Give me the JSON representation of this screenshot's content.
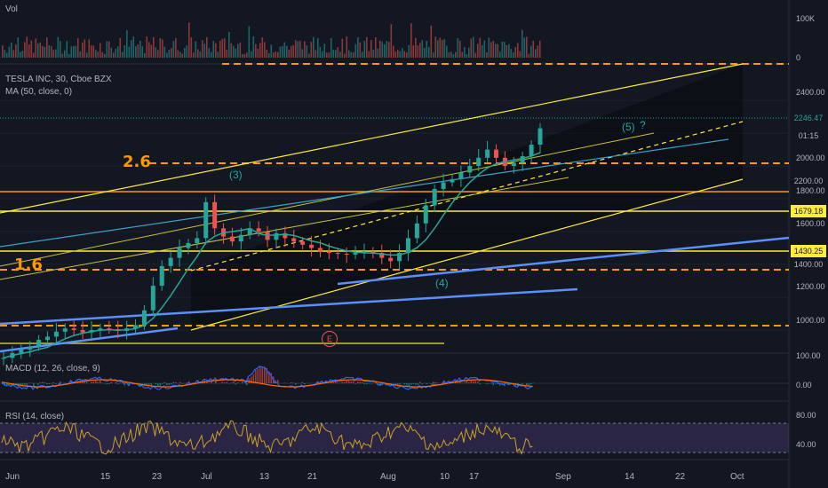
{
  "chart_data": [
    {
      "type": "bar",
      "title": "Vol",
      "y_ticks": [
        "100K",
        "0"
      ]
    },
    {
      "type": "candlestick",
      "title": "TESLA INC, 30, Cboe BZX",
      "indicator": "MA (50, close, 0)",
      "x_ticks": [
        "Jun",
        "15",
        "23",
        "Jul",
        "13",
        "21",
        "Aug",
        "10",
        "17",
        "Sep",
        "14",
        "22",
        "Oct"
      ],
      "y_ticks": [
        "2400.00",
        "2200.00",
        "2000.00",
        "1800.00",
        "1600.00",
        "1400.00",
        "1200.00",
        "1000.00"
      ],
      "ylim": [
        870,
        2590
      ],
      "close_series": [
        830,
        860,
        880,
        900,
        940,
        960,
        990,
        1010,
        1000,
        985,
        1000,
        1010,
        1005,
        995,
        1010,
        1030,
        1120,
        1270,
        1390,
        1440,
        1500,
        1530,
        1560,
        1780,
        1620,
        1570,
        1540,
        1580,
        1620,
        1600,
        1550,
        1590,
        1560,
        1540,
        1520,
        1500,
        1480,
        1470,
        1465,
        1460,
        1470,
        1480,
        1470,
        1440,
        1420,
        1470,
        1560,
        1650,
        1760,
        1860,
        1900,
        1920,
        1960,
        2000,
        2050,
        2100,
        2050,
        2000,
        2020,
        2060,
        2130,
        2230
      ],
      "last_price": "2246.47",
      "countdown": "01:15",
      "horizontal_levels": [
        "1679.18",
        "1430.25"
      ],
      "fib_labels": [
        "2.6",
        "1.6"
      ],
      "wave_labels": [
        "(3)",
        "(4)",
        "(5)",
        "?"
      ],
      "event_label": "E",
      "series": [
        {
          "name": "MA (50, close, 0)",
          "color": "#26a69a"
        }
      ]
    },
    {
      "type": "line",
      "title": "MACD (12, 26, close, 9)",
      "y_ticks": [
        "100.00",
        "0.00"
      ],
      "colors": {
        "macd": "#2962ff",
        "signal": "#ff6d00"
      }
    },
    {
      "type": "line",
      "title": "RSI (14, close)",
      "y_ticks": [
        "80.00",
        "40.00"
      ],
      "bands": [
        70,
        30
      ],
      "color": "#c9a227"
    }
  ],
  "colors": {
    "background": "#131722",
    "orange": "#ff9800",
    "yellow": "#ffeb3b",
    "blue_trend": "#5b8ff9",
    "teal": "#26a69a",
    "up": "#26a69a",
    "down": "#ef5350"
  }
}
